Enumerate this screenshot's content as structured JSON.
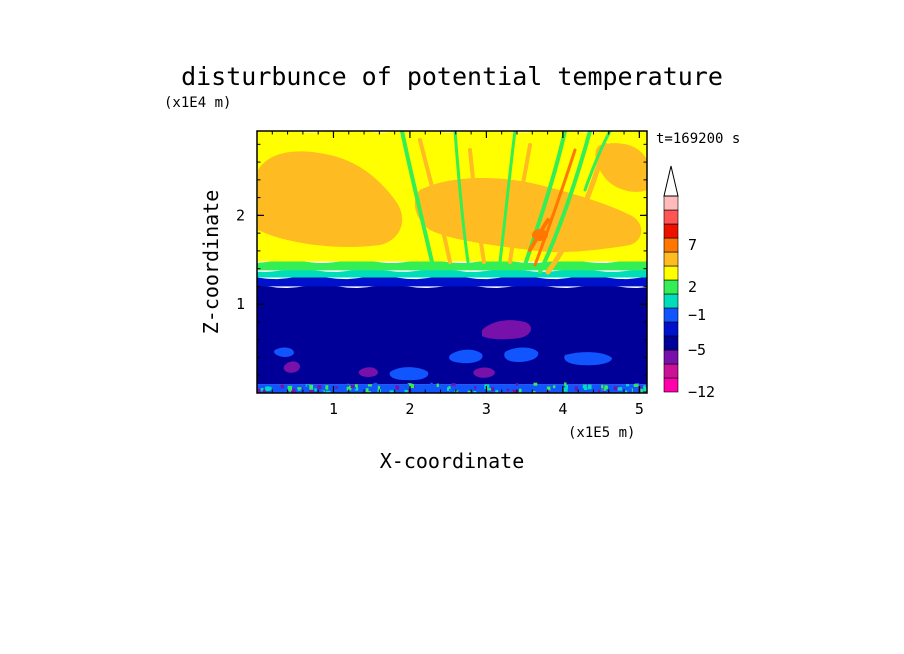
{
  "chart_data": {
    "type": "heatmap",
    "title": "disturbunce of potential temperature",
    "time_label": "t=169200 s",
    "x_axis": {
      "label": "X-coordinate",
      "unit_label": "(x1E5 m)",
      "range": [
        0.0,
        5.1
      ],
      "ticks": [
        1,
        2,
        3,
        4,
        5
      ]
    },
    "y_axis": {
      "label": "Z-coordinate",
      "unit_label": "(x1E4 m)",
      "range": [
        0.0,
        2.95
      ],
      "ticks": [
        1,
        2
      ]
    },
    "colorbar": {
      "tick_labels": [
        "7",
        "2",
        "-1",
        "-5",
        "-12"
      ],
      "colors": [
        "#ff00aa",
        "#cc1199",
        "#7711aa",
        "#000099",
        "#0011cc",
        "#1155ff",
        "#00ddbb",
        "#33ee55",
        "#ffff00",
        "#ffbb22",
        "#ff7700",
        "#ee1100",
        "#ff5555",
        "#ffbbbb"
      ]
    },
    "bands": [
      {
        "z_from": 0.0,
        "z_to": 0.1,
        "color": "#1155ff",
        "description_level": "-3"
      },
      {
        "z_from": 0.1,
        "z_to": 1.2,
        "color": "#000099",
        "description_level": "-5"
      },
      {
        "z_from": 1.2,
        "z_to": 1.3,
        "color": "#0011cc",
        "description_level": "-4"
      },
      {
        "z_from": 1.3,
        "z_to": 1.38,
        "color": "#00ddbb",
        "description_level": "-1"
      },
      {
        "z_from": 1.38,
        "z_to": 1.48,
        "color": "#33ee55",
        "description_level": "0"
      },
      {
        "z_from": 1.48,
        "z_to": 2.95,
        "color": "#ffff00",
        "description_level": "1"
      }
    ]
  }
}
